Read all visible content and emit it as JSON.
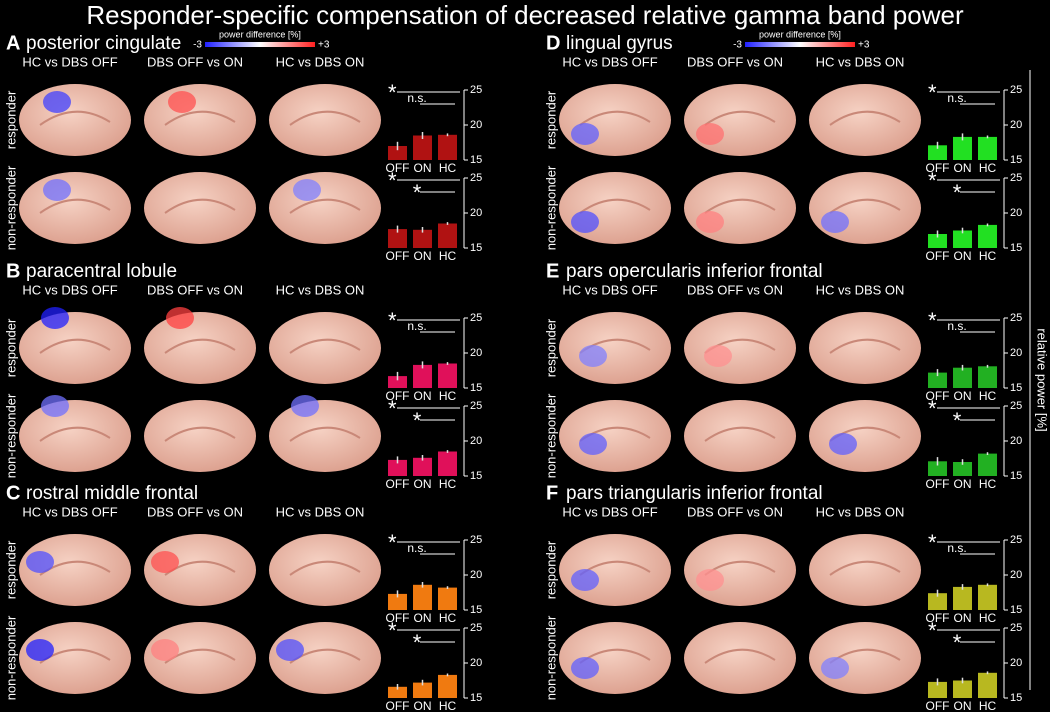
{
  "title": "Responder-specific compensation of decreased relative gamma band power",
  "colorbar": {
    "label": "power difference [%]",
    "min_label": "-3",
    "max_label": "+3"
  },
  "y_label": "relative power [%]",
  "columns": [
    "HC vs DBS OFF",
    "DBS OFF vs ON",
    "HC vs DBS ON"
  ],
  "rows": [
    "responder",
    "non-responder"
  ],
  "panels": [
    {
      "letter": "A",
      "name": "posterior cingulate"
    },
    {
      "letter": "B",
      "name": "paracentral lobule"
    },
    {
      "letter": "C",
      "name": "rostral middle frontal"
    },
    {
      "letter": "D",
      "name": "lingual gyrus"
    },
    {
      "letter": "E",
      "name": "pars opercularis inferior frontal"
    },
    {
      "letter": "F",
      "name": "pars triangularis inferior frontal"
    }
  ],
  "chart_data": [
    {
      "type": "bar",
      "categories": [
        "OFF",
        "ON",
        "HC"
      ],
      "values": [
        17.0,
        18.5,
        18.6
      ],
      "errors": [
        0.6,
        0.5,
        0.2
      ],
      "color": "#b01212",
      "ylim": [
        15,
        25
      ],
      "yticks": [
        15,
        20,
        25
      ],
      "significance": [
        "*",
        "n.s."
      ]
    },
    {
      "type": "bar",
      "categories": [
        "OFF",
        "ON",
        "HC"
      ],
      "values": [
        17.7,
        17.6,
        18.5
      ],
      "errors": [
        0.5,
        0.4,
        0.2
      ],
      "color": "#b01212",
      "ylim": [
        15,
        25
      ],
      "yticks": [
        15,
        20,
        25
      ],
      "significance": [
        "*",
        "*"
      ]
    },
    {
      "type": "bar",
      "categories": [
        "OFF",
        "ON",
        "HC"
      ],
      "values": [
        16.7,
        18.3,
        18.5
      ],
      "errors": [
        0.6,
        0.5,
        0.2
      ],
      "color": "#e0105a",
      "ylim": [
        15,
        25
      ],
      "yticks": [
        15,
        20,
        25
      ],
      "significance": [
        "*",
        "n.s."
      ]
    },
    {
      "type": "bar",
      "categories": [
        "OFF",
        "ON",
        "HC"
      ],
      "values": [
        17.3,
        17.6,
        18.5
      ],
      "errors": [
        0.5,
        0.4,
        0.2
      ],
      "color": "#e0105a",
      "ylim": [
        15,
        25
      ],
      "yticks": [
        15,
        20,
        25
      ],
      "significance": [
        "*",
        "*"
      ]
    },
    {
      "type": "bar",
      "categories": [
        "OFF",
        "ON",
        "HC"
      ],
      "values": [
        17.3,
        18.6,
        18.2
      ],
      "errors": [
        0.5,
        0.4,
        0.2
      ],
      "color": "#f07a10",
      "ylim": [
        15,
        25
      ],
      "yticks": [
        15,
        20,
        25
      ],
      "significance": [
        "*",
        "n.s."
      ]
    },
    {
      "type": "bar",
      "categories": [
        "OFF",
        "ON",
        "HC"
      ],
      "values": [
        16.6,
        17.2,
        18.3
      ],
      "errors": [
        0.4,
        0.4,
        0.2
      ],
      "color": "#f07a10",
      "ylim": [
        15,
        25
      ],
      "yticks": [
        15,
        20,
        25
      ],
      "significance": [
        "*",
        "*"
      ]
    },
    {
      "type": "bar",
      "categories": [
        "OFF",
        "ON",
        "HC"
      ],
      "values": [
        17.1,
        18.3,
        18.3
      ],
      "errors": [
        0.5,
        0.5,
        0.2
      ],
      "color": "#22e022",
      "ylim": [
        15,
        25
      ],
      "yticks": [
        15,
        20,
        25
      ],
      "significance": [
        "*",
        "n.s."
      ]
    },
    {
      "type": "bar",
      "categories": [
        "OFF",
        "ON",
        "HC"
      ],
      "values": [
        17.0,
        17.5,
        18.3
      ],
      "errors": [
        0.5,
        0.4,
        0.2
      ],
      "color": "#22e022",
      "ylim": [
        15,
        25
      ],
      "yticks": [
        15,
        20,
        25
      ],
      "significance": [
        "*",
        "*"
      ]
    },
    {
      "type": "bar",
      "categories": [
        "OFF",
        "ON",
        "HC"
      ],
      "values": [
        17.2,
        17.9,
        18.1
      ],
      "errors": [
        0.5,
        0.4,
        0.2
      ],
      "color": "#22b022",
      "ylim": [
        15,
        25
      ],
      "yticks": [
        15,
        20,
        25
      ],
      "significance": [
        "*",
        "n.s."
      ]
    },
    {
      "type": "bar",
      "categories": [
        "OFF",
        "ON",
        "HC"
      ],
      "values": [
        17.1,
        17.0,
        18.2
      ],
      "errors": [
        0.6,
        0.4,
        0.2
      ],
      "color": "#22b022",
      "ylim": [
        15,
        25
      ],
      "yticks": [
        15,
        20,
        25
      ],
      "significance": [
        "*",
        "*"
      ]
    },
    {
      "type": "bar",
      "categories": [
        "OFF",
        "ON",
        "HC"
      ],
      "values": [
        17.4,
        18.3,
        18.6
      ],
      "errors": [
        0.5,
        0.4,
        0.2
      ],
      "color": "#b8b820",
      "ylim": [
        15,
        25
      ],
      "yticks": [
        15,
        20,
        25
      ],
      "significance": [
        "*",
        "n.s."
      ]
    },
    {
      "type": "bar",
      "categories": [
        "OFF",
        "ON",
        "HC"
      ],
      "values": [
        17.3,
        17.5,
        18.6
      ],
      "errors": [
        0.5,
        0.4,
        0.2
      ],
      "color": "#b8b820",
      "ylim": [
        15,
        25
      ],
      "yticks": [
        15,
        20,
        25
      ],
      "significance": [
        "*",
        "*"
      ]
    }
  ]
}
